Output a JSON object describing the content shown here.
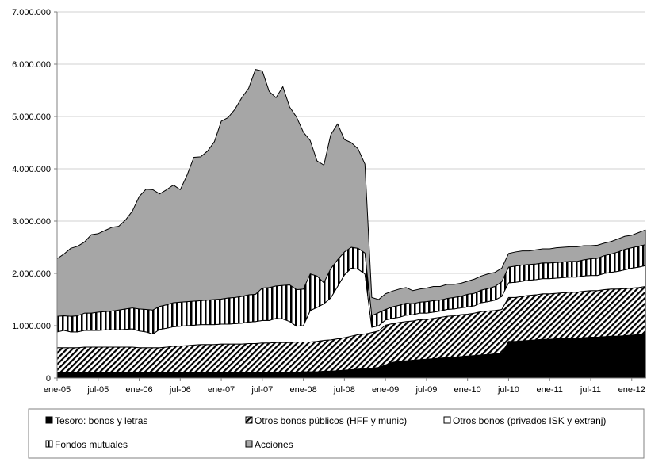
{
  "chart_data": {
    "type": "area",
    "stacked": true,
    "title": "",
    "xlabel": "",
    "ylabel": "",
    "ylim": [
      0,
      7000000
    ],
    "yticks": [
      0,
      1000000,
      2000000,
      3000000,
      4000000,
      5000000,
      6000000,
      7000000
    ],
    "ytick_labels": [
      "0",
      "1.000.000",
      "2.000.000",
      "3.000.000",
      "4.000.000",
      "5.000.000",
      "6.000.000",
      "7.000.000"
    ],
    "x_tick_labels": [
      "ene-05",
      "jul-05",
      "ene-06",
      "jul-06",
      "ene-07",
      "jul-07",
      "ene-08",
      "jul-08",
      "ene-09",
      "jul-09",
      "ene-10",
      "jul-10",
      "ene-11",
      "jul-11",
      "ene-12"
    ],
    "grid": "horizontal",
    "legend_position": "bottom",
    "x": [
      "ene-05",
      "feb-05",
      "mar-05",
      "abr-05",
      "may-05",
      "jun-05",
      "jul-05",
      "ago-05",
      "sep-05",
      "oct-05",
      "nov-05",
      "dic-05",
      "ene-06",
      "feb-06",
      "mar-06",
      "abr-06",
      "may-06",
      "jun-06",
      "jul-06",
      "ago-06",
      "sep-06",
      "oct-06",
      "nov-06",
      "dic-06",
      "ene-07",
      "feb-07",
      "mar-07",
      "abr-07",
      "may-07",
      "jun-07",
      "jul-07",
      "ago-07",
      "sep-07",
      "oct-07",
      "nov-07",
      "dic-07",
      "ene-08",
      "feb-08",
      "mar-08",
      "abr-08",
      "may-08",
      "jun-08",
      "jul-08",
      "ago-08",
      "sep-08",
      "oct-08",
      "nov-08",
      "dic-08",
      "ene-09",
      "feb-09",
      "mar-09",
      "abr-09",
      "may-09",
      "jun-09",
      "jul-09",
      "ago-09",
      "sep-09",
      "oct-09",
      "nov-09",
      "dic-09",
      "ene-10",
      "feb-10",
      "mar-10",
      "abr-10",
      "may-10",
      "jun-10",
      "jul-10",
      "ago-10",
      "sep-10",
      "oct-10",
      "nov-10",
      "dic-10",
      "ene-11",
      "feb-11",
      "mar-11",
      "abr-11",
      "may-11",
      "jun-11",
      "jul-11",
      "ago-11",
      "sep-11",
      "oct-11",
      "nov-11",
      "dic-11",
      "ene-12",
      "feb-12",
      "mar-12"
    ],
    "series": [
      {
        "name": "Tesoro: bonos y letras",
        "pattern": "solid-black",
        "values": [
          100000,
          100000,
          100000,
          100000,
          100000,
          100000,
          100000,
          100000,
          100000,
          100000,
          100000,
          100000,
          100000,
          100000,
          100000,
          100000,
          100000,
          110000,
          110000,
          110000,
          110000,
          110000,
          110000,
          110000,
          110000,
          110000,
          110000,
          110000,
          110000,
          110000,
          110000,
          110000,
          110000,
          110000,
          110000,
          110000,
          120000,
          120000,
          120000,
          130000,
          130000,
          140000,
          150000,
          160000,
          170000,
          180000,
          190000,
          200000,
          250000,
          300000,
          320000,
          330000,
          340000,
          350000,
          360000,
          370000,
          380000,
          390000,
          400000,
          410000,
          420000,
          430000,
          440000,
          450000,
          460000,
          470000,
          700000,
          700000,
          710000,
          720000,
          730000,
          740000,
          740000,
          750000,
          750000,
          760000,
          760000,
          770000,
          780000,
          780000,
          790000,
          800000,
          800000,
          810000,
          820000,
          830000,
          850000
        ]
      },
      {
        "name": "Otros bonos públicos (HFF y munic)",
        "pattern": "diagonal-stripes",
        "values": [
          480000,
          480000,
          480000,
          480000,
          490000,
          490000,
          490000,
          490000,
          490000,
          490000,
          490000,
          490000,
          480000,
          480000,
          480000,
          480000,
          490000,
          500000,
          500000,
          510000,
          520000,
          530000,
          530000,
          530000,
          540000,
          540000,
          540000,
          540000,
          550000,
          550000,
          560000,
          560000,
          570000,
          570000,
          570000,
          580000,
          570000,
          570000,
          580000,
          590000,
          600000,
          610000,
          620000,
          640000,
          660000,
          660000,
          680000,
          700000,
          760000,
          740000,
          740000,
          750000,
          750000,
          770000,
          760000,
          770000,
          780000,
          790000,
          790000,
          800000,
          800000,
          810000,
          830000,
          830000,
          830000,
          840000,
          840000,
          840000,
          850000,
          860000,
          860000,
          870000,
          870000,
          870000,
          880000,
          880000,
          880000,
          890000,
          890000,
          890000,
          900000,
          900000,
          900000,
          900000,
          900000,
          900000,
          900000
        ]
      },
      {
        "name": "Otros bonos (privados ISK y extranj)",
        "pattern": "white",
        "values": [
          300000,
          330000,
          300000,
          300000,
          320000,
          320000,
          320000,
          330000,
          330000,
          330000,
          340000,
          350000,
          320000,
          300000,
          260000,
          350000,
          360000,
          370000,
          380000,
          380000,
          380000,
          380000,
          380000,
          380000,
          380000,
          380000,
          390000,
          400000,
          410000,
          420000,
          430000,
          430000,
          460000,
          450000,
          400000,
          300000,
          310000,
          600000,
          650000,
          700000,
          800000,
          1000000,
          1200000,
          1300000,
          1250000,
          1150000,
          100000,
          100000,
          100000,
          100000,
          100000,
          120000,
          120000,
          120000,
          120000,
          120000,
          120000,
          130000,
          130000,
          130000,
          140000,
          140000,
          170000,
          180000,
          200000,
          250000,
          280000,
          290000,
          290000,
          290000,
          290000,
          290000,
          290000,
          290000,
          290000,
          290000,
          290000,
          290000,
          290000,
          290000,
          310000,
          320000,
          340000,
          360000,
          380000,
          390000,
          400000
        ]
      },
      {
        "name": "Fondos mutuales",
        "pattern": "vertical-stripes",
        "values": [
          300000,
          280000,
          300000,
          310000,
          330000,
          330000,
          350000,
          350000,
          360000,
          380000,
          390000,
          400000,
          420000,
          430000,
          460000,
          440000,
          450000,
          460000,
          460000,
          460000,
          460000,
          460000,
          470000,
          480000,
          480000,
          500000,
          500000,
          510000,
          520000,
          520000,
          620000,
          630000,
          620000,
          640000,
          700000,
          700000,
          700000,
          700000,
          600000,
          400000,
          560000,
          510000,
          440000,
          400000,
          400000,
          400000,
          220000,
          250000,
          200000,
          220000,
          230000,
          230000,
          210000,
          210000,
          220000,
          220000,
          210000,
          210000,
          220000,
          220000,
          240000,
          240000,
          240000,
          250000,
          260000,
          280000,
          300000,
          310000,
          310000,
          300000,
          300000,
          300000,
          300000,
          300000,
          300000,
          300000,
          300000,
          310000,
          320000,
          330000,
          340000,
          350000,
          370000,
          390000,
          390000,
          400000,
          400000
        ]
      },
      {
        "name": "Acciones",
        "pattern": "gray",
        "values": [
          1100000,
          1180000,
          1300000,
          1330000,
          1360000,
          1500000,
          1500000,
          1550000,
          1600000,
          1600000,
          1700000,
          1850000,
          2150000,
          2300000,
          2300000,
          2150000,
          2200000,
          2250000,
          2150000,
          2420000,
          2750000,
          2750000,
          2850000,
          3020000,
          3400000,
          3450000,
          3600000,
          3800000,
          3950000,
          4300000,
          4150000,
          3750000,
          3600000,
          3800000,
          3400000,
          3300000,
          3000000,
          2550000,
          2200000,
          2250000,
          2560000,
          2600000,
          2150000,
          2000000,
          1900000,
          1700000,
          350000,
          250000,
          300000,
          300000,
          310000,
          300000,
          250000,
          250000,
          260000,
          270000,
          260000,
          270000,
          250000,
          250000,
          250000,
          270000,
          270000,
          280000,
          270000,
          260000,
          260000,
          270000,
          270000,
          260000,
          270000,
          270000,
          270000,
          280000,
          280000,
          280000,
          280000,
          270000,
          250000,
          250000,
          240000,
          240000,
          250000,
          250000,
          240000,
          260000,
          280000
        ]
      }
    ]
  }
}
